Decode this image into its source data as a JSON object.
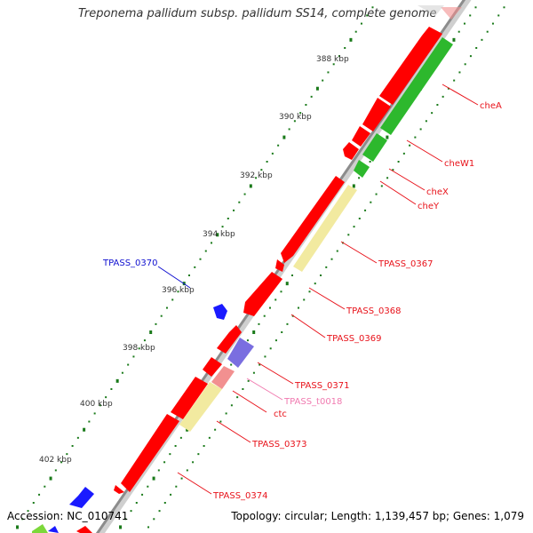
{
  "title": "Treponema pallidum subsp. pallidum SS14, complete genome",
  "accession": "Accession: NC_010741",
  "topology": "Topology: circular; Length: 1,139,457 bp; Genes: 1,079",
  "ticks": [
    "388 kbp",
    "390 kbp",
    "392 kbp",
    "394 kbp",
    "396 kbp",
    "398 kbp",
    "400 kbp",
    "402 kbp"
  ],
  "gene_labels": [
    {
      "text": "cheA",
      "color": "#e8121a"
    },
    {
      "text": "cheW1",
      "color": "#e8121a"
    },
    {
      "text": "cheX",
      "color": "#e8121a"
    },
    {
      "text": "cheY",
      "color": "#e8121a"
    },
    {
      "text": "TPASS_0367",
      "color": "#e8121a"
    },
    {
      "text": "TPASS_0368",
      "color": "#e8121a"
    },
    {
      "text": "TPASS_0369",
      "color": "#e8121a"
    },
    {
      "text": "TPASS_0370",
      "color": "#1010d0"
    },
    {
      "text": "TPASS_0371",
      "color": "#e8121a"
    },
    {
      "text": "TPASS_t0018",
      "color": "#f07ab0"
    },
    {
      "text": "ctc",
      "color": "#e8121a"
    },
    {
      "text": "TPASS_0373",
      "color": "#e8121a"
    },
    {
      "text": "TPASS_0374",
      "color": "#e8121a"
    }
  ],
  "colors": {
    "cds": "#ff0000",
    "cds_other_strand": "#2db82d",
    "trna": "#f29090",
    "highlight": "#f2eaa0",
    "blue_gene": "#1a1aff",
    "purple_gene": "#7a6ee0",
    "backbone": "#8c8c8c",
    "tick": "#1a7a1a"
  }
}
